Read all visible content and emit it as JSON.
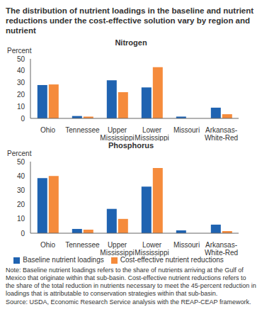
{
  "title": "The distribution of nutrient loadings in the baseline and nutrient reductions under the cost-effective solution vary by region and nutrient",
  "note": "Note: Baseline nutrient loadings refers to the share of nutrients arriving at the Gulf of Mexico that originate within that sub-basin. Cost-effective nutrient reductions refers to the share of the total reduction in nutrients necessary to meet the 45-percent reduction in loadings that is attributable to conservation strategies within that sub-basin.",
  "source": "Source: USDA, Economic Research Service analysis with the REAP-CEAP framework.",
  "chart_data": [
    {
      "type": "bar",
      "title": "Nitrogen",
      "y_label": "Percent",
      "categories": [
        "Ohio",
        "Tennessee",
        "Upper Mississippi",
        "Lower Mississippi",
        "Missouri",
        "Arkansas-White-Red"
      ],
      "series": [
        {
          "name": "Baseline nutrient loadings",
          "color": "#1f63b1",
          "values": [
            28,
            2,
            32,
            26,
            1.5,
            9
          ]
        },
        {
          "name": "Cost-effective nutrient reductions",
          "color": "#f58b3c",
          "values": [
            28.5,
            1.5,
            22,
            43,
            0,
            3.5
          ]
        }
      ],
      "ylim": [
        0,
        50
      ],
      "yticks": [
        0,
        10,
        20,
        30,
        40,
        50
      ],
      "grid": false
    },
    {
      "type": "bar",
      "title": "Phosphorus",
      "y_label": "Percent",
      "categories": [
        "Ohio",
        "Tennessee",
        "Upper Mississippi",
        "Lower Mississippi",
        "Missouri",
        "Arkansas-White-Red"
      ],
      "series": [
        {
          "name": "Baseline nutrient loadings",
          "color": "#1f63b1",
          "values": [
            38.5,
            3,
            17,
            32.5,
            2,
            6
          ]
        },
        {
          "name": "Cost-effective nutrient reductions",
          "color": "#f58b3c",
          "values": [
            40,
            2.5,
            10,
            45.5,
            0,
            1.5
          ]
        }
      ],
      "ylim": [
        0,
        50
      ],
      "yticks": [
        0,
        10,
        20,
        30,
        40,
        50
      ],
      "grid": false,
      "legend": "bottom"
    }
  ]
}
